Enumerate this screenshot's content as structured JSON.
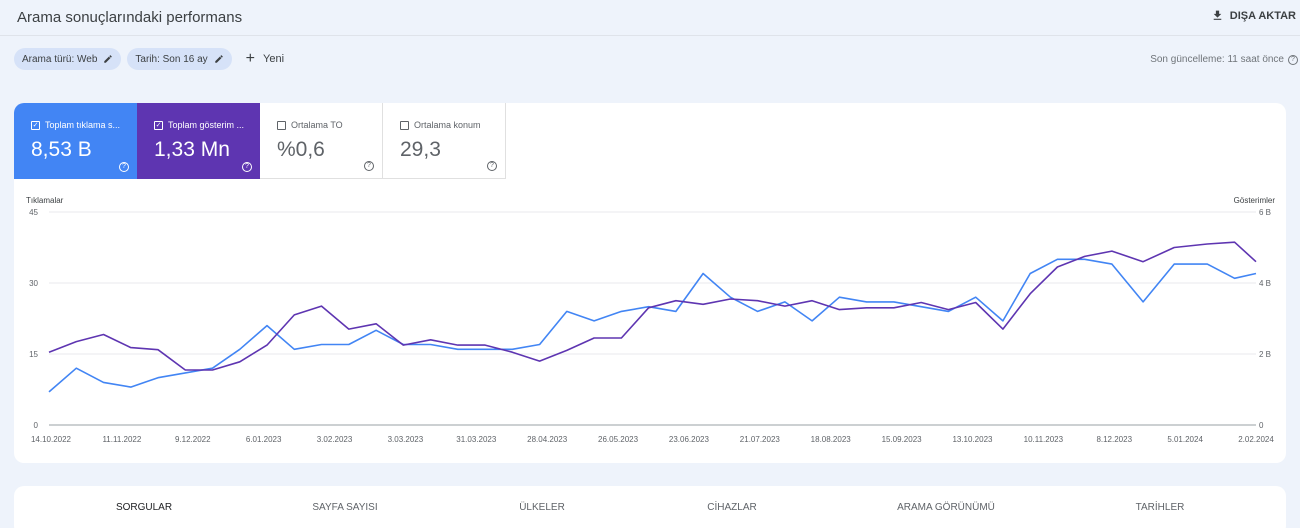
{
  "header": {
    "title": "Arama sonuçlarındaki performans",
    "export_label": "DIŞA AKTAR"
  },
  "filters": {
    "chips": [
      {
        "label": "Arama türü: Web"
      },
      {
        "label": "Tarih: Son 16 ay"
      }
    ],
    "new_label": "Yeni",
    "last_update": "Son güncelleme: 11 saat önce"
  },
  "metrics": [
    {
      "label": "Toplam tıklama s...",
      "value": "8,53 B",
      "checked": true,
      "color": "#4285f4"
    },
    {
      "label": "Toplam gösterim ...",
      "value": "1,33 Mn",
      "checked": true,
      "color": "#5e35b1"
    },
    {
      "label": "Ortalama TO",
      "value": "%0,6",
      "checked": false
    },
    {
      "label": "Ortalama konum",
      "value": "29,3",
      "checked": false
    }
  ],
  "chart_data": {
    "type": "line",
    "left_axis": {
      "title": "Tıklamalar",
      "ylim": [
        0,
        45
      ],
      "ticks": [
        "45",
        "30",
        "15",
        "0"
      ]
    },
    "right_axis": {
      "title": "Gösterimler",
      "ylim": [
        0,
        6000
      ],
      "ticks": [
        "6 B",
        "4 B",
        "2 B",
        "0"
      ]
    },
    "x_ticks": [
      "14.10.2022",
      "11.11.2022",
      "9.12.2022",
      "6.01.2023",
      "3.02.2023",
      "3.03.2023",
      "31.03.2023",
      "28.04.2023",
      "26.05.2023",
      "23.06.2023",
      "21.07.2023",
      "18.08.2023",
      "15.09.2023",
      "13.10.2023",
      "10.11.2023",
      "8.12.2023",
      "5.01.2024",
      "2.02.2024"
    ],
    "grid": true,
    "series": [
      {
        "name": "Tıklamalar",
        "axis": "left",
        "color": "#4285f4",
        "points": [
          [
            0,
            7
          ],
          [
            14,
            12
          ],
          [
            28,
            9
          ],
          [
            42,
            8
          ],
          [
            56,
            10
          ],
          [
            70,
            11
          ],
          [
            84,
            12
          ],
          [
            98,
            16
          ],
          [
            112,
            21
          ],
          [
            126,
            16
          ],
          [
            140,
            17
          ],
          [
            154,
            17
          ],
          [
            168,
            20
          ],
          [
            182,
            17
          ],
          [
            196,
            17
          ],
          [
            210,
            16
          ],
          [
            224,
            16
          ],
          [
            238,
            16
          ],
          [
            252,
            17
          ],
          [
            266,
            24
          ],
          [
            280,
            22
          ],
          [
            294,
            24
          ],
          [
            308,
            25
          ],
          [
            322,
            24
          ],
          [
            336,
            32
          ],
          [
            350,
            27
          ],
          [
            364,
            24
          ],
          [
            378,
            26
          ],
          [
            392,
            22
          ],
          [
            406,
            27
          ],
          [
            420,
            26
          ],
          [
            434,
            26
          ],
          [
            448,
            25
          ],
          [
            462,
            24
          ],
          [
            476,
            27
          ],
          [
            490,
            22
          ],
          [
            504,
            32
          ],
          [
            518,
            35
          ],
          [
            532,
            35
          ],
          [
            546,
            34
          ],
          [
            562,
            26
          ],
          [
            578,
            34
          ],
          [
            595,
            34
          ],
          [
            609,
            31
          ],
          [
            620,
            32
          ]
        ]
      },
      {
        "name": "Gösterimler",
        "axis": "right",
        "color": "#5e35b1",
        "points": [
          [
            0,
            2050
          ],
          [
            14,
            2350
          ],
          [
            28,
            2550
          ],
          [
            42,
            2180
          ],
          [
            56,
            2120
          ],
          [
            70,
            1550
          ],
          [
            84,
            1550
          ],
          [
            98,
            1780
          ],
          [
            112,
            2250
          ],
          [
            126,
            3100
          ],
          [
            140,
            3350
          ],
          [
            154,
            2700
          ],
          [
            168,
            2850
          ],
          [
            182,
            2250
          ],
          [
            196,
            2400
          ],
          [
            210,
            2250
          ],
          [
            224,
            2250
          ],
          [
            238,
            2050
          ],
          [
            252,
            1800
          ],
          [
            266,
            2100
          ],
          [
            280,
            2450
          ],
          [
            294,
            2450
          ],
          [
            308,
            3300
          ],
          [
            322,
            3500
          ],
          [
            336,
            3400
          ],
          [
            350,
            3550
          ],
          [
            364,
            3500
          ],
          [
            378,
            3350
          ],
          [
            392,
            3500
          ],
          [
            406,
            3250
          ],
          [
            420,
            3300
          ],
          [
            434,
            3300
          ],
          [
            448,
            3450
          ],
          [
            462,
            3250
          ],
          [
            476,
            3450
          ],
          [
            490,
            2700
          ],
          [
            504,
            3700
          ],
          [
            518,
            4450
          ],
          [
            532,
            4750
          ],
          [
            546,
            4900
          ],
          [
            562,
            4600
          ],
          [
            578,
            5000
          ],
          [
            595,
            5100
          ],
          [
            609,
            5150
          ],
          [
            620,
            4600
          ]
        ]
      }
    ]
  },
  "tabs": [
    "SORGULAR",
    "SAYFA SAYISI",
    "ÜLKELER",
    "CİHAZLAR",
    "ARAMA GÖRÜNÜMÜ",
    "TARİHLER"
  ]
}
